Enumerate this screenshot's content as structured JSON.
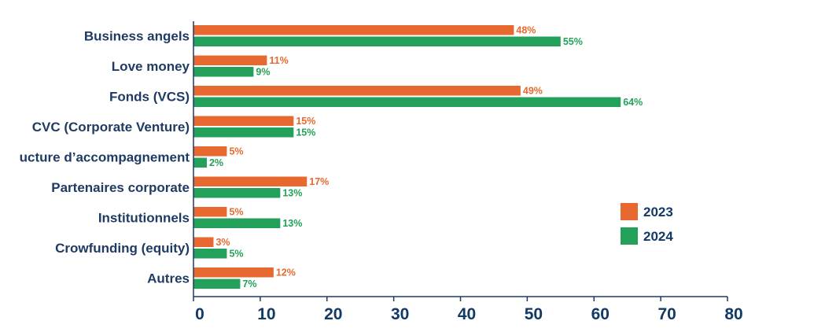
{
  "chart_data": {
    "type": "bar",
    "orientation": "horizontal",
    "categories": [
      "Business angels",
      "Love money",
      "Fonds (VCS)",
      "CVC (Corporate Venture)",
      "ucture d’accompagnement",
      "Partenaires corporate",
      "Institutionnels",
      "Crowfunding (equity)",
      "Autres"
    ],
    "series": [
      {
        "name": "2023",
        "color": "#e8692f",
        "values": [
          48,
          11,
          49,
          15,
          5,
          17,
          5,
          3,
          12
        ]
      },
      {
        "name": "2024",
        "color": "#23a05a",
        "values": [
          55,
          9,
          64,
          15,
          2,
          13,
          13,
          5,
          7
        ]
      }
    ],
    "value_suffix": "%",
    "xlim": [
      0,
      80
    ],
    "xticks": [
      0,
      10,
      20,
      30,
      40,
      50,
      60,
      70,
      80
    ],
    "grid": false,
    "legend_position": "right"
  }
}
